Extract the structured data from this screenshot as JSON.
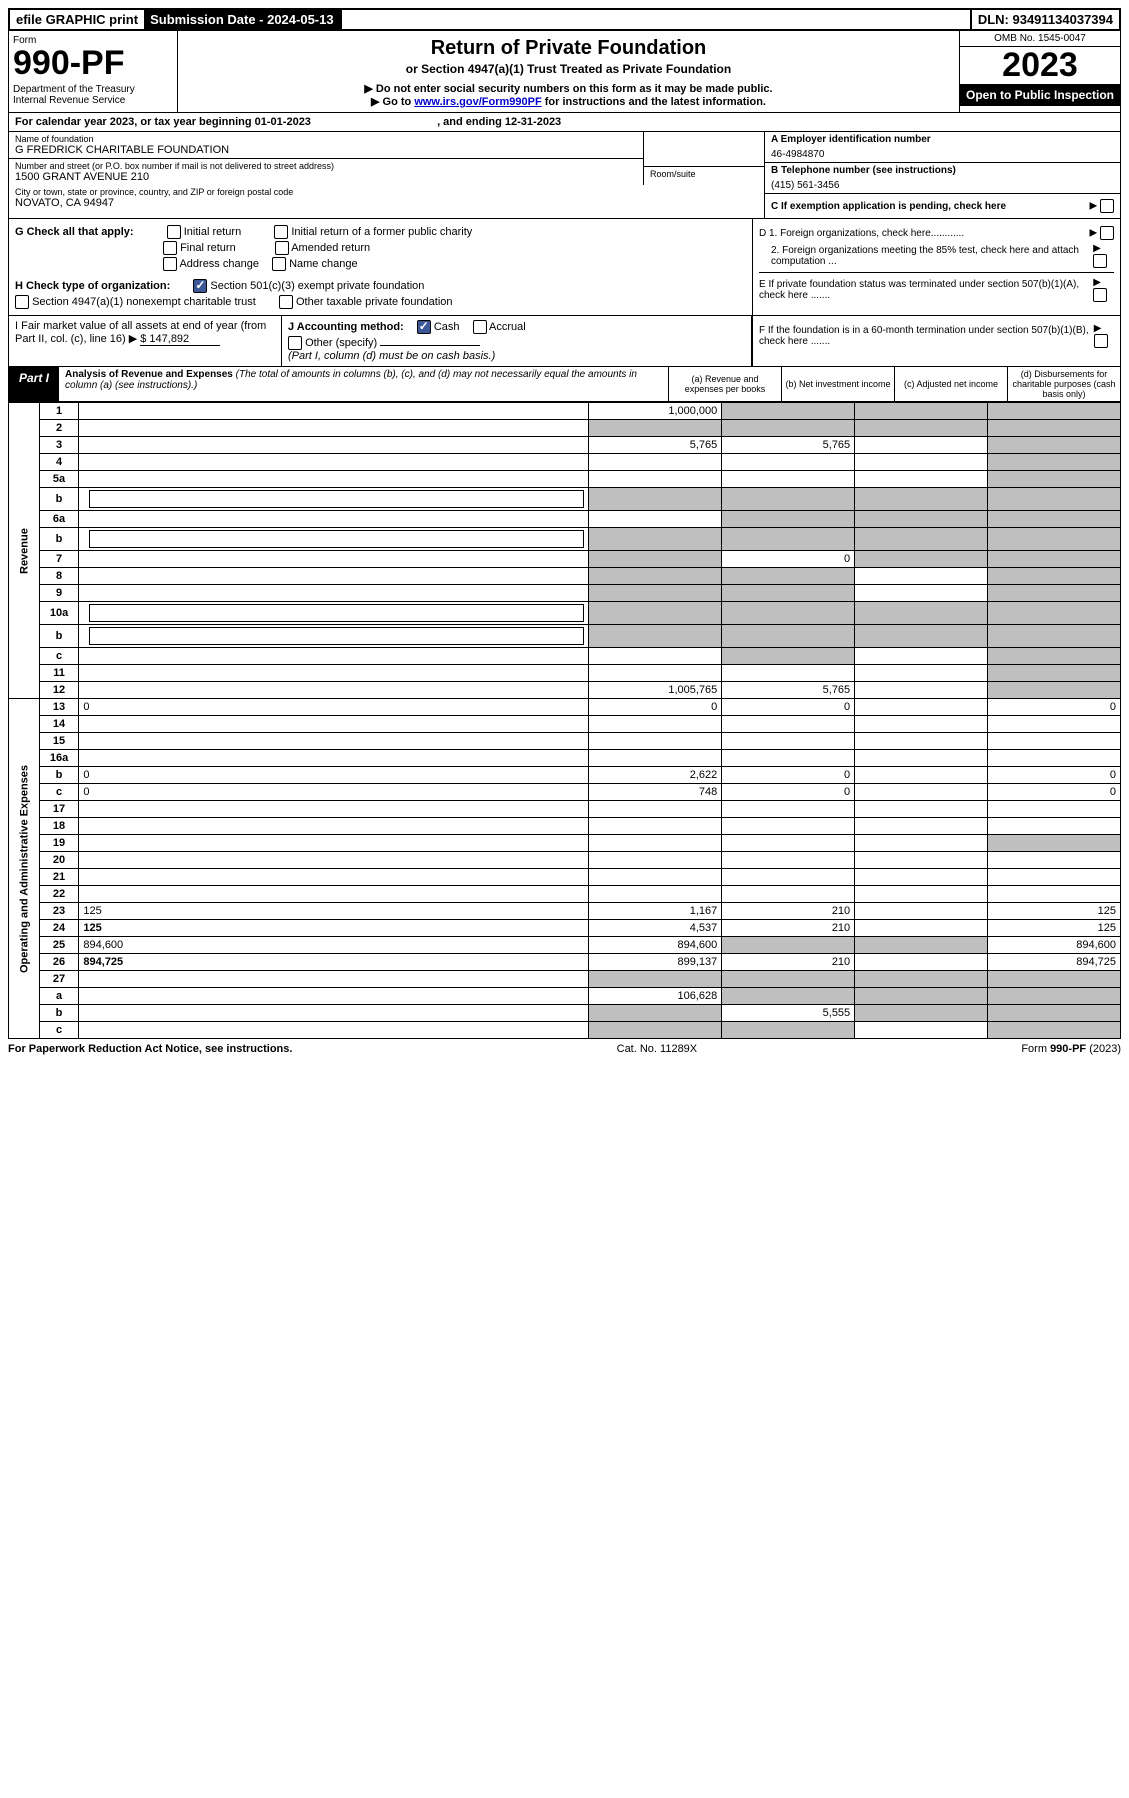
{
  "topbar": {
    "efile": "efile GRAPHIC print",
    "subdate_label": "Submission Date - 2024-05-13",
    "dln": "DLN: 93491134037394"
  },
  "header": {
    "form_word": "Form",
    "form_num": "990-PF",
    "dept": "Department of the Treasury",
    "irs": "Internal Revenue Service",
    "title": "Return of Private Foundation",
    "subtitle": "or Section 4947(a)(1) Trust Treated as Private Foundation",
    "note1": "▶ Do not enter social security numbers on this form as it may be made public.",
    "note2_pre": "▶ Go to ",
    "note2_link": "www.irs.gov/Form990PF",
    "note2_post": " for instructions and the latest information.",
    "omb": "OMB No. 1545-0047",
    "year": "2023",
    "open": "Open to Public Inspection"
  },
  "calyear": {
    "text_pre": "For calendar year 2023, or tax year beginning ",
    "begin": "01-01-2023",
    "mid": " , and ending ",
    "end": "12-31-2023"
  },
  "id": {
    "name_label": "Name of foundation",
    "name": "G FREDRICK CHARITABLE FOUNDATION",
    "addr_label": "Number and street (or P.O. box number if mail is not delivered to street address)",
    "addr": "1500 GRANT AVENUE 210",
    "room_label": "Room/suite",
    "city_label": "City or town, state or province, country, and ZIP or foreign postal code",
    "city": "NOVATO, CA  94947",
    "a_label": "A Employer identification number",
    "a_val": "46-4984870",
    "b_label": "B Telephone number (see instructions)",
    "b_val": "(415) 561-3456",
    "c_label": "C If exemption application is pending, check here",
    "d1": "D 1. Foreign organizations, check here............",
    "d2": "2. Foreign organizations meeting the 85% test, check here and attach computation ...",
    "e": "E  If private foundation status was terminated under section 507(b)(1)(A), check here .......",
    "f": "F  If the foundation is in a 60-month termination under section 507(b)(1)(B), check here .......",
    "g_label": "G Check all that apply:",
    "g_opts": [
      "Initial return",
      "Final return",
      "Address change",
      "Initial return of a former public charity",
      "Amended return",
      "Name change"
    ],
    "h_label": "H Check type of organization:",
    "h_opts": [
      "Section 501(c)(3) exempt private foundation",
      "Section 4947(a)(1) nonexempt charitable trust",
      "Other taxable private foundation"
    ],
    "i_label": "I Fair market value of all assets at end of year (from Part II, col. (c), line 16) ▶",
    "i_val": "$  147,892",
    "j_label": "J Accounting method:",
    "j_cash": "Cash",
    "j_accrual": "Accrual",
    "j_other": "Other (specify)",
    "j_note": "(Part I, column (d) must be on cash basis.)"
  },
  "part1": {
    "label": "Part I",
    "title": "Analysis of Revenue and Expenses",
    "title_note": " (The total of amounts in columns (b), (c), and (d) may not necessarily equal the amounts in column (a) (see instructions).)",
    "col_a": "(a)   Revenue and expenses per books",
    "col_b": "(b)   Net investment income",
    "col_c": "(c)   Adjusted net income",
    "col_d": "(d)   Disbursements for charitable purposes (cash basis only)"
  },
  "side": {
    "revenue": "Revenue",
    "expenses": "Operating and Administrative Expenses"
  },
  "rows": [
    {
      "n": "1",
      "d": "",
      "a": "1,000,000",
      "b": "",
      "c": "",
      "sb": true,
      "sc": true,
      "sd": true
    },
    {
      "n": "2",
      "d": "",
      "a": "",
      "b": "",
      "c": "",
      "sa": true,
      "sb": true,
      "sc": true,
      "sd": true,
      "bold_not": true
    },
    {
      "n": "3",
      "d": "",
      "a": "5,765",
      "b": "5,765",
      "c": "",
      "sd": true
    },
    {
      "n": "4",
      "d": "",
      "a": "",
      "b": "",
      "c": "",
      "sd": true
    },
    {
      "n": "5a",
      "d": "",
      "a": "",
      "b": "",
      "c": "",
      "sd": true
    },
    {
      "n": "b",
      "d": "",
      "a": "",
      "b": "",
      "c": "",
      "sa": true,
      "sb": true,
      "sc": true,
      "sd": true,
      "inline": true
    },
    {
      "n": "6a",
      "d": "",
      "a": "",
      "b": "",
      "c": "",
      "sb": true,
      "sc": true,
      "sd": true
    },
    {
      "n": "b",
      "d": "",
      "a": "",
      "b": "",
      "c": "",
      "sa": true,
      "sb": true,
      "sc": true,
      "sd": true,
      "inline": true
    },
    {
      "n": "7",
      "d": "",
      "a": "",
      "b": "0",
      "c": "",
      "sa": true,
      "sc": true,
      "sd": true
    },
    {
      "n": "8",
      "d": "",
      "a": "",
      "b": "",
      "c": "",
      "sa": true,
      "sb": true,
      "sd": true
    },
    {
      "n": "9",
      "d": "",
      "a": "",
      "b": "",
      "c": "",
      "sa": true,
      "sb": true,
      "sd": true
    },
    {
      "n": "10a",
      "d": "",
      "a": "",
      "b": "",
      "c": "",
      "sa": true,
      "sb": true,
      "sc": true,
      "sd": true,
      "inline": true
    },
    {
      "n": "b",
      "d": "",
      "a": "",
      "b": "",
      "c": "",
      "sa": true,
      "sb": true,
      "sc": true,
      "sd": true,
      "inline": true
    },
    {
      "n": "c",
      "d": "",
      "a": "",
      "b": "",
      "c": "",
      "sb": true,
      "sd": true
    },
    {
      "n": "11",
      "d": "",
      "a": "",
      "b": "",
      "c": "",
      "sd": true
    },
    {
      "n": "12",
      "d": "",
      "a": "1,005,765",
      "b": "5,765",
      "c": "",
      "bold": true,
      "sd": true
    },
    {
      "n": "13",
      "d": "0",
      "a": "0",
      "b": "0",
      "c": ""
    },
    {
      "n": "14",
      "d": "",
      "a": "",
      "b": "",
      "c": ""
    },
    {
      "n": "15",
      "d": "",
      "a": "",
      "b": "",
      "c": ""
    },
    {
      "n": "16a",
      "d": "",
      "a": "",
      "b": "",
      "c": ""
    },
    {
      "n": "b",
      "d": "0",
      "a": "2,622",
      "b": "0",
      "c": ""
    },
    {
      "n": "c",
      "d": "0",
      "a": "748",
      "b": "0",
      "c": ""
    },
    {
      "n": "17",
      "d": "",
      "a": "",
      "b": "",
      "c": ""
    },
    {
      "n": "18",
      "d": "",
      "a": "",
      "b": "",
      "c": ""
    },
    {
      "n": "19",
      "d": "",
      "a": "",
      "b": "",
      "c": "",
      "sd": true
    },
    {
      "n": "20",
      "d": "",
      "a": "",
      "b": "",
      "c": ""
    },
    {
      "n": "21",
      "d": "",
      "a": "",
      "b": "",
      "c": ""
    },
    {
      "n": "22",
      "d": "",
      "a": "",
      "b": "",
      "c": ""
    },
    {
      "n": "23",
      "d": "125",
      "a": "1,167",
      "b": "210",
      "c": ""
    },
    {
      "n": "24",
      "d": "125",
      "a": "4,537",
      "b": "210",
      "c": "",
      "bold": true
    },
    {
      "n": "25",
      "d": "894,600",
      "a": "894,600",
      "b": "",
      "c": "",
      "sb": true,
      "sc": true
    },
    {
      "n": "26",
      "d": "894,725",
      "a": "899,137",
      "b": "210",
      "c": "",
      "bold": true
    },
    {
      "n": "27",
      "d": "",
      "a": "",
      "b": "",
      "c": "",
      "sa": true,
      "sb": true,
      "sc": true,
      "sd": true
    },
    {
      "n": "a",
      "d": "",
      "a": "106,628",
      "b": "",
      "c": "",
      "bold": true,
      "sb": true,
      "sc": true,
      "sd": true
    },
    {
      "n": "b",
      "d": "",
      "a": "",
      "b": "5,555",
      "c": "",
      "bold": true,
      "sa": true,
      "sc": true,
      "sd": true
    },
    {
      "n": "c",
      "d": "",
      "a": "",
      "b": "",
      "c": "",
      "bold": true,
      "sa": true,
      "sb": true,
      "sd": true
    }
  ],
  "footer": {
    "left": "For Paperwork Reduction Act Notice, see instructions.",
    "mid": "Cat. No. 11289X",
    "right": "Form 990-PF (2023)"
  }
}
